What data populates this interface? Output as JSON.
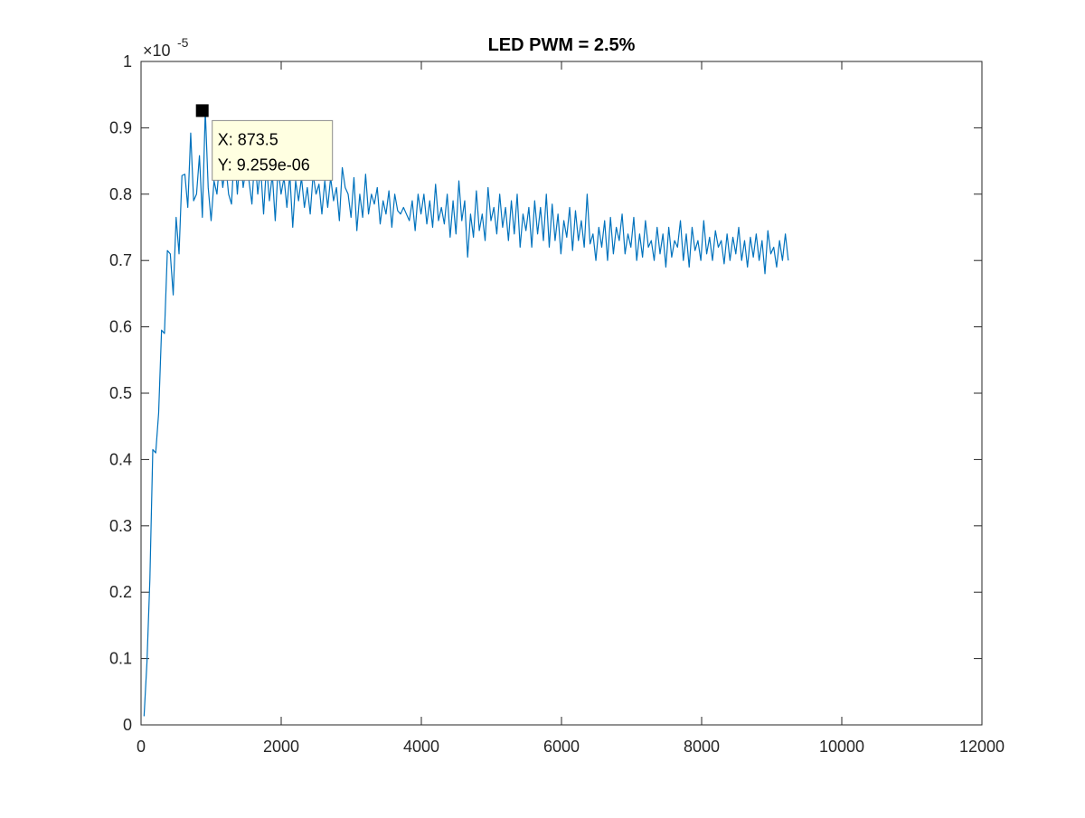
{
  "colors": {
    "series": "#0072BD",
    "axis": "#262626",
    "background": "#ffffff",
    "tooltip_bg": "#FFFFE1",
    "tooltip_border": "#8C8C8C",
    "marker": "#000000"
  },
  "chart_data": {
    "type": "line",
    "title": "LED PWM = 2.5%",
    "xlabel": "",
    "ylabel": "",
    "xlim": [
      0,
      12000
    ],
    "ylim": [
      0,
      1e-05
    ],
    "x_ticks": [
      0,
      2000,
      4000,
      6000,
      8000,
      10000,
      12000
    ],
    "x_tick_labels": [
      "0",
      "2000",
      "4000",
      "6000",
      "8000",
      "10000",
      "12000"
    ],
    "y_ticks": [
      0,
      0.1,
      0.2,
      0.3,
      0.4,
      0.5,
      0.6,
      0.7,
      0.8,
      0.9,
      1
    ],
    "y_tick_labels": [
      "0",
      "0.1",
      "0.2",
      "0.3",
      "0.4",
      "0.5",
      "0.6",
      "0.7",
      "0.8",
      "0.9",
      "1"
    ],
    "y_exponent_label": {
      "base": "×10",
      "exponent": "-5"
    },
    "grid": false,
    "datatip": {
      "x": 873.5,
      "y": 9.259e-06,
      "x_text": "X: 873.5",
      "y_text": "Y: 9.259e-06"
    },
    "series": [
      {
        "x_start": 43,
        "x_step": 41.6,
        "values": [
          0.013,
          0.095,
          0.22,
          0.415,
          0.41,
          0.47,
          0.595,
          0.59,
          0.715,
          0.71,
          0.648,
          0.765,
          0.71,
          0.828,
          0.83,
          0.78,
          0.892,
          0.79,
          0.8,
          0.858,
          0.765,
          0.9259,
          0.81,
          0.76,
          0.82,
          0.8,
          0.855,
          0.81,
          0.845,
          0.8,
          0.785,
          0.87,
          0.8,
          0.86,
          0.81,
          0.84,
          0.82,
          0.785,
          0.86,
          0.8,
          0.84,
          0.77,
          0.845,
          0.79,
          0.83,
          0.76,
          0.84,
          0.8,
          0.825,
          0.78,
          0.83,
          0.75,
          0.82,
          0.79,
          0.825,
          0.78,
          0.81,
          0.77,
          0.83,
          0.8,
          0.815,
          0.77,
          0.82,
          0.78,
          0.825,
          0.79,
          0.81,
          0.76,
          0.84,
          0.81,
          0.8,
          0.765,
          0.825,
          0.745,
          0.8,
          0.765,
          0.83,
          0.77,
          0.8,
          0.785,
          0.81,
          0.755,
          0.79,
          0.77,
          0.805,
          0.75,
          0.8,
          0.775,
          0.77,
          0.78,
          0.77,
          0.76,
          0.79,
          0.745,
          0.8,
          0.77,
          0.8,
          0.755,
          0.79,
          0.75,
          0.815,
          0.76,
          0.78,
          0.755,
          0.8,
          0.735,
          0.79,
          0.74,
          0.82,
          0.76,
          0.79,
          0.705,
          0.77,
          0.735,
          0.805,
          0.745,
          0.77,
          0.73,
          0.81,
          0.76,
          0.78,
          0.74,
          0.8,
          0.75,
          0.78,
          0.73,
          0.79,
          0.74,
          0.8,
          0.72,
          0.77,
          0.745,
          0.78,
          0.72,
          0.79,
          0.74,
          0.78,
          0.73,
          0.8,
          0.72,
          0.785,
          0.73,
          0.77,
          0.71,
          0.76,
          0.735,
          0.78,
          0.715,
          0.775,
          0.73,
          0.76,
          0.72,
          0.8,
          0.725,
          0.74,
          0.7,
          0.75,
          0.72,
          0.76,
          0.7,
          0.765,
          0.71,
          0.75,
          0.73,
          0.77,
          0.71,
          0.74,
          0.72,
          0.765,
          0.7,
          0.74,
          0.705,
          0.76,
          0.72,
          0.73,
          0.7,
          0.75,
          0.71,
          0.74,
          0.69,
          0.75,
          0.705,
          0.73,
          0.72,
          0.76,
          0.7,
          0.74,
          0.69,
          0.75,
          0.715,
          0.73,
          0.7,
          0.76,
          0.71,
          0.735,
          0.7,
          0.745,
          0.72,
          0.73,
          0.695,
          0.74,
          0.7,
          0.735,
          0.71,
          0.75,
          0.7,
          0.73,
          0.69,
          0.735,
          0.705,
          0.74,
          0.7,
          0.73,
          0.68,
          0.745,
          0.71,
          0.72,
          0.69,
          0.73,
          0.7,
          0.74,
          0.7
        ]
      }
    ]
  }
}
